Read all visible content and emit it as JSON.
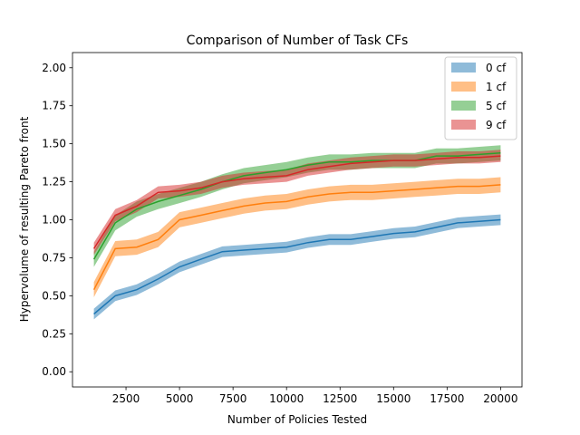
{
  "chart_data": {
    "type": "line",
    "title": "Comparison of Number of Task CFs",
    "xlabel": "Number of Policies Tested",
    "ylabel": "Hypervolume of resulting Pareto front",
    "xlim": [
      0,
      21000
    ],
    "ylim": [
      -0.1,
      2.1
    ],
    "xticks": [
      2500,
      5000,
      7500,
      10000,
      12500,
      15000,
      17500,
      20000
    ],
    "xtick_labels": [
      "2500",
      "5000",
      "7500",
      "10000",
      "12500",
      "15000",
      "17500",
      "20000"
    ],
    "yticks": [
      0.0,
      0.25,
      0.5,
      0.75,
      1.0,
      1.25,
      1.5,
      1.75,
      2.0
    ],
    "ytick_labels": [
      "0.00",
      "0.25",
      "0.50",
      "0.75",
      "1.00",
      "1.25",
      "1.50",
      "1.75",
      "2.00"
    ],
    "grid": false,
    "legend_position": "top-right",
    "x": [
      1000,
      2000,
      3000,
      4000,
      5000,
      6000,
      7000,
      8000,
      9000,
      10000,
      11000,
      12000,
      13000,
      14000,
      15000,
      16000,
      17000,
      18000,
      19000,
      20000
    ],
    "series": [
      {
        "name": "0 cf",
        "color": "#1f77b4",
        "values": [
          0.38,
          0.5,
          0.54,
          0.61,
          0.69,
          0.74,
          0.79,
          0.8,
          0.81,
          0.82,
          0.85,
          0.87,
          0.87,
          0.89,
          0.91,
          0.92,
          0.95,
          0.98,
          0.99,
          1.0
        ],
        "band": 0.035
      },
      {
        "name": "1 cf",
        "color": "#ff7f0e",
        "values": [
          0.54,
          0.81,
          0.82,
          0.87,
          1.0,
          1.03,
          1.06,
          1.09,
          1.11,
          1.12,
          1.15,
          1.17,
          1.18,
          1.18,
          1.19,
          1.2,
          1.21,
          1.22,
          1.22,
          1.23
        ],
        "band": 0.05
      },
      {
        "name": "5 cf",
        "color": "#2ca02c",
        "values": [
          0.74,
          0.98,
          1.07,
          1.12,
          1.16,
          1.2,
          1.25,
          1.29,
          1.31,
          1.33,
          1.36,
          1.38,
          1.38,
          1.39,
          1.39,
          1.39,
          1.42,
          1.42,
          1.43,
          1.44
        ],
        "band": 0.05
      },
      {
        "name": "9 cf",
        "color": "#d62728",
        "values": [
          0.81,
          1.03,
          1.09,
          1.18,
          1.19,
          1.21,
          1.25,
          1.27,
          1.28,
          1.29,
          1.33,
          1.35,
          1.37,
          1.38,
          1.39,
          1.39,
          1.4,
          1.41,
          1.41,
          1.42
        ],
        "band": 0.04
      }
    ]
  }
}
